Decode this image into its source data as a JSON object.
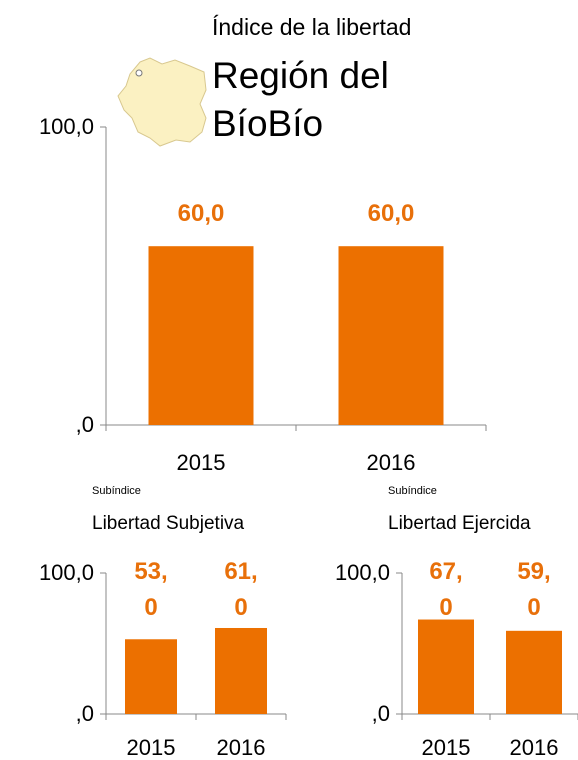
{
  "chart_data": [
    {
      "type": "bar",
      "title": "Índice de la libertad",
      "subtitle": "Región del BíoBío",
      "categories": [
        "2015",
        "2016"
      ],
      "values": [
        60,
        60
      ],
      "value_labels": [
        "60,0",
        "60,0"
      ],
      "color": "#ec7000",
      "ylim": [
        0,
        100
      ],
      "yticks": [
        {
          "value": 0,
          "label": ",0"
        },
        {
          "value": 100,
          "label": "100,0"
        }
      ]
    },
    {
      "type": "bar",
      "caption": "Subíndice",
      "title": "Libertad Subjetiva",
      "categories": [
        "2015",
        "2016"
      ],
      "values": [
        53,
        61
      ],
      "value_labels": [
        "53,0",
        "61,0"
      ],
      "color": "#ec7000",
      "ylim": [
        0,
        100
      ],
      "yticks": [
        {
          "value": 0,
          "label": ",0"
        },
        {
          "value": 100,
          "label": "100,0"
        }
      ]
    },
    {
      "type": "bar",
      "caption": "Subíndice",
      "title": "Libertad Ejercida",
      "categories": [
        "2015",
        "2016"
      ],
      "values": [
        67,
        59
      ],
      "value_labels": [
        "67,0",
        "59,0"
      ],
      "color": "#ec7000",
      "ylim": [
        0,
        100
      ],
      "yticks": [
        {
          "value": 0,
          "label": ",0"
        },
        {
          "value": 100,
          "label": "100,0"
        }
      ]
    }
  ]
}
